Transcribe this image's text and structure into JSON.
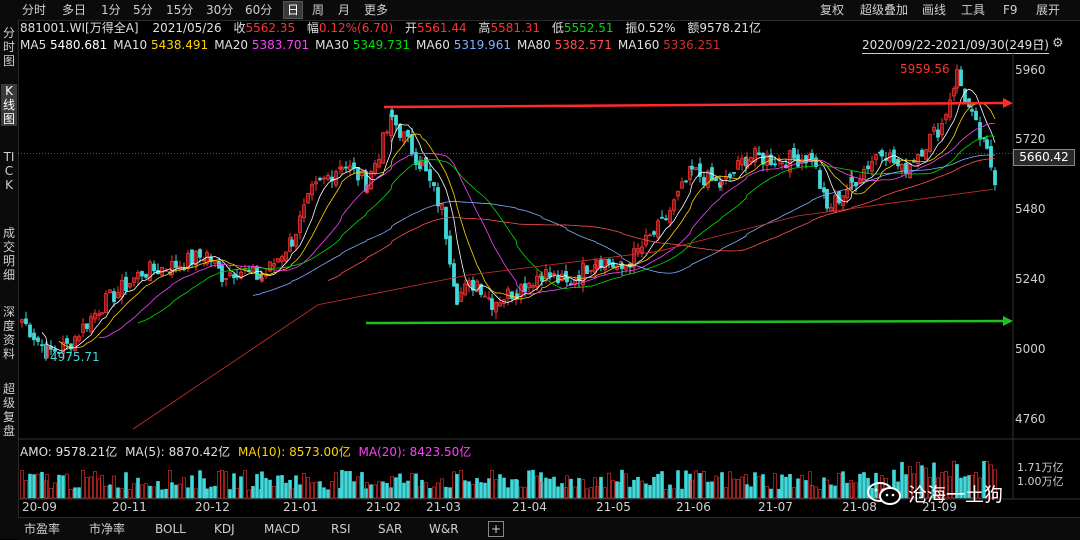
{
  "toolbar": {
    "periods": [
      "分时",
      "多日",
      "1分",
      "5分",
      "15分",
      "30分",
      "60分",
      "日",
      "周",
      "月",
      "更多"
    ],
    "active_period": "日",
    "right_items": [
      "复权",
      "超级叠加",
      "画线",
      "工具",
      "F9",
      "展开"
    ]
  },
  "sidebar": {
    "items": [
      "分时图",
      "K线图",
      "TICK",
      "成交明细",
      "深度资料",
      "超级复盘"
    ],
    "active": "K线图"
  },
  "quote": {
    "symbol": "881001.WI[万得全A]",
    "date": "2021/05/26",
    "close_label": "收",
    "close": "5562.35",
    "change_label": "幅",
    "change": "0.12%(6.70)",
    "open_label": "开",
    "open": "5561.44",
    "high_label": "高",
    "high": "5581.31",
    "low_label": "低",
    "low": "5552.51",
    "amp_label": "振",
    "amp": "0.52%",
    "amount_label": "额",
    "amount": "9578.21亿"
  },
  "ma_lines": [
    {
      "label": "MA5",
      "value": "5480.681",
      "color": "#ffffff"
    },
    {
      "label": "MA10",
      "value": "5438.491",
      "color": "#ffd400"
    },
    {
      "label": "MA20",
      "value": "5383.701",
      "color": "#ff40ff"
    },
    {
      "label": "MA30",
      "value": "5349.731",
      "color": "#00e000"
    },
    {
      "label": "MA60",
      "value": "5319.961",
      "color": "#80b0ff"
    },
    {
      "label": "MA80",
      "value": "5382.571",
      "color": "#ff5050"
    },
    {
      "label": "MA160",
      "value": "5336.251",
      "color": "#d03030"
    }
  ],
  "range_label": "2020/09/22-2021/09/30(249日)",
  "price_axis": [
    "5960",
    "5720",
    "5480",
    "5240",
    "5000",
    "4760"
  ],
  "current_price": "5660.42",
  "high_marker": "5959.56",
  "low_marker": "4975.71",
  "volume": {
    "amo_label": "AMO:",
    "amo": "9578.21亿",
    "ma5_label": "MA(5):",
    "ma5": "8870.42亿",
    "ma10_label": "MA(10):",
    "ma10": "8573.00亿",
    "ma20_label": "MA(20):",
    "ma20": "8423.50亿",
    "axis_top": "1.71万亿",
    "axis_bottom": "1.00万亿"
  },
  "date_axis": [
    "20-09",
    "20-11",
    "20-12",
    "21-01",
    "21-02",
    "21-03",
    "21-04",
    "21-05",
    "21-06",
    "21-07",
    "21-08",
    "21-09"
  ],
  "bottom_tabs": [
    "市盈率",
    "市净率",
    "BOLL",
    "KDJ",
    "MACD",
    "RSI",
    "SAR",
    "W&R"
  ],
  "watermark": "沧海一土狗",
  "colors": {
    "up": "#ff3232",
    "down": "#40d8d8",
    "resistance": "#ff2a2a",
    "support": "#20c020"
  },
  "chart_data": {
    "type": "candlestick",
    "ylim": [
      4700,
      6000
    ],
    "resistance_level": 5850,
    "support_level": 5100,
    "high_point": 5959.56,
    "low_point": 4975.71
  }
}
